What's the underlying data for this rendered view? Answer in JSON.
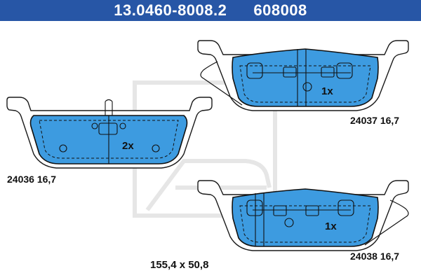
{
  "header": {
    "part_number": "13.0460-8008.2",
    "article_number": "608008"
  },
  "colors": {
    "header_bg": "#2756a6",
    "friction_material": "#3d9be0",
    "watermark": "#e6e6e6"
  },
  "pads": {
    "left": {
      "qty": "2x",
      "label": "24036 16,7"
    },
    "right_top": {
      "qty": "1x",
      "label": "24037 16,7"
    },
    "right_bottom": {
      "qty": "1x",
      "label": "24038 16,7"
    }
  },
  "dimensions": "155,4 x 50,8"
}
